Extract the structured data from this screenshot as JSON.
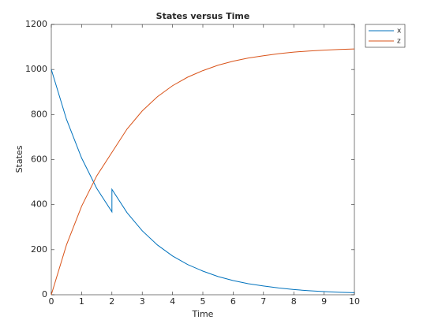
{
  "chart_data": {
    "type": "line",
    "title": "States versus Time",
    "xlabel": "Time",
    "ylabel": "States",
    "x": [
      0,
      0.5,
      1,
      1.5,
      2,
      2,
      2.5,
      3,
      3.5,
      4,
      4.5,
      5,
      5.5,
      6,
      6.5,
      7,
      7.5,
      8,
      8.5,
      9,
      9.5,
      10
    ],
    "series": [
      {
        "name": "x",
        "color": "#0072bd",
        "values": [
          1000,
          779,
          607,
          472,
          368,
          468,
          364,
          284,
          221,
          172,
          134,
          105,
          81,
          63,
          49,
          39,
          30,
          23,
          18,
          14,
          11,
          9
        ]
      },
      {
        "name": "z",
        "color": "#d95319",
        "values": [
          0,
          221,
          393,
          528,
          632,
          632,
          736,
          816,
          879,
          928,
          966,
          995,
          1019,
          1037,
          1051,
          1061,
          1070,
          1077,
          1082,
          1086,
          1089,
          1091
        ]
      }
    ],
    "xlim": [
      0,
      10
    ],
    "xticks": [
      0,
      1,
      2,
      3,
      4,
      5,
      6,
      7,
      8,
      9,
      10
    ],
    "ylim": [
      0,
      1200
    ],
    "yticks": [
      0,
      200,
      400,
      600,
      800,
      1000,
      1200
    ],
    "legend": "outside-top-right"
  }
}
